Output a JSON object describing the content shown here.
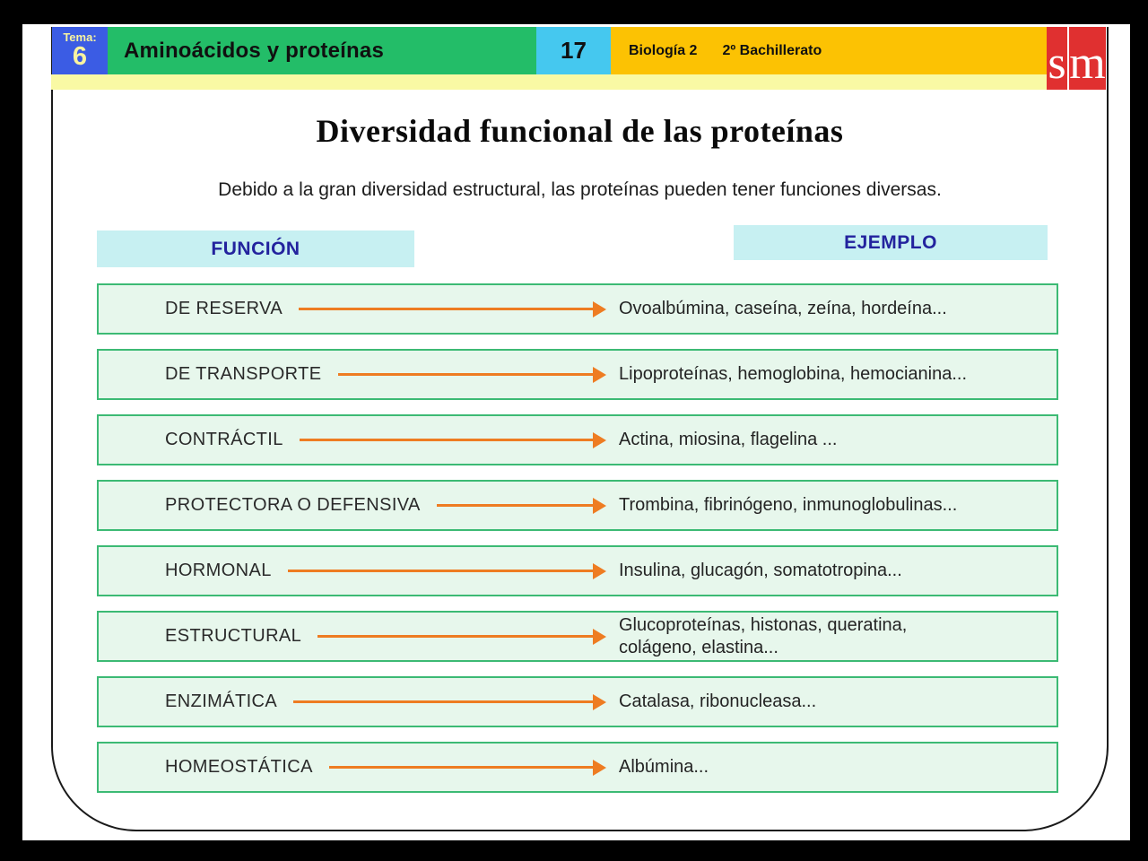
{
  "header": {
    "tema_label": "Tema:",
    "tema_number": "6",
    "unit_title": "Aminoácidos y proteínas",
    "page_number": "17",
    "course": "Biología 2",
    "level": "2º Bachillerato",
    "logo_s": "s",
    "logo_m": "m"
  },
  "slide": {
    "title": "Diversidad funcional de las proteínas",
    "subtitle": "Debido a la gran diversidad estructural, las proteínas pueden tener funciones diversas.",
    "col_function": "FUNCIÓN",
    "col_example": "EJEMPLO"
  },
  "rows": [
    {
      "funcion": "DE RESERVA",
      "ejemplo": "Ovoalbúmina, caseína, zeína, hordeína..."
    },
    {
      "funcion": "DE TRANSPORTE",
      "ejemplo": "Lipoproteínas, hemoglobina, hemocianina..."
    },
    {
      "funcion": "CONTRÁCTIL",
      "ejemplo": "Actina, miosina, flagelina ..."
    },
    {
      "funcion": "PROTECTORA O DEFENSIVA",
      "ejemplo": "Trombina, fibrinógeno, inmunoglobulinas..."
    },
    {
      "funcion": "HORMONAL",
      "ejemplo": "Insulina, glucagón, somatotropina..."
    },
    {
      "funcion": "ESTRUCTURAL",
      "ejemplo": "Glucoproteínas, histonas, queratina,\ncolágeno, elastina..."
    },
    {
      "funcion": "ENZIMÁTICA",
      "ejemplo": "Catalasa, ribonucleasa..."
    },
    {
      "funcion": "HOMEOSTÁTICA",
      "ejemplo": "Albúmina..."
    }
  ],
  "colors": {
    "header_blue": "#3b5ce4",
    "header_green": "#23bd68",
    "header_cyan": "#45c8ef",
    "header_gold": "#fcc203",
    "strip_yellow": "#f9f9a4",
    "logo_red": "#e03030",
    "column_header_bg": "#c7f0f2",
    "column_header_text": "#23239e",
    "row_bg": "#e7f7ec",
    "row_border": "#3cba74",
    "arrow_orange": "#ee7c22"
  }
}
